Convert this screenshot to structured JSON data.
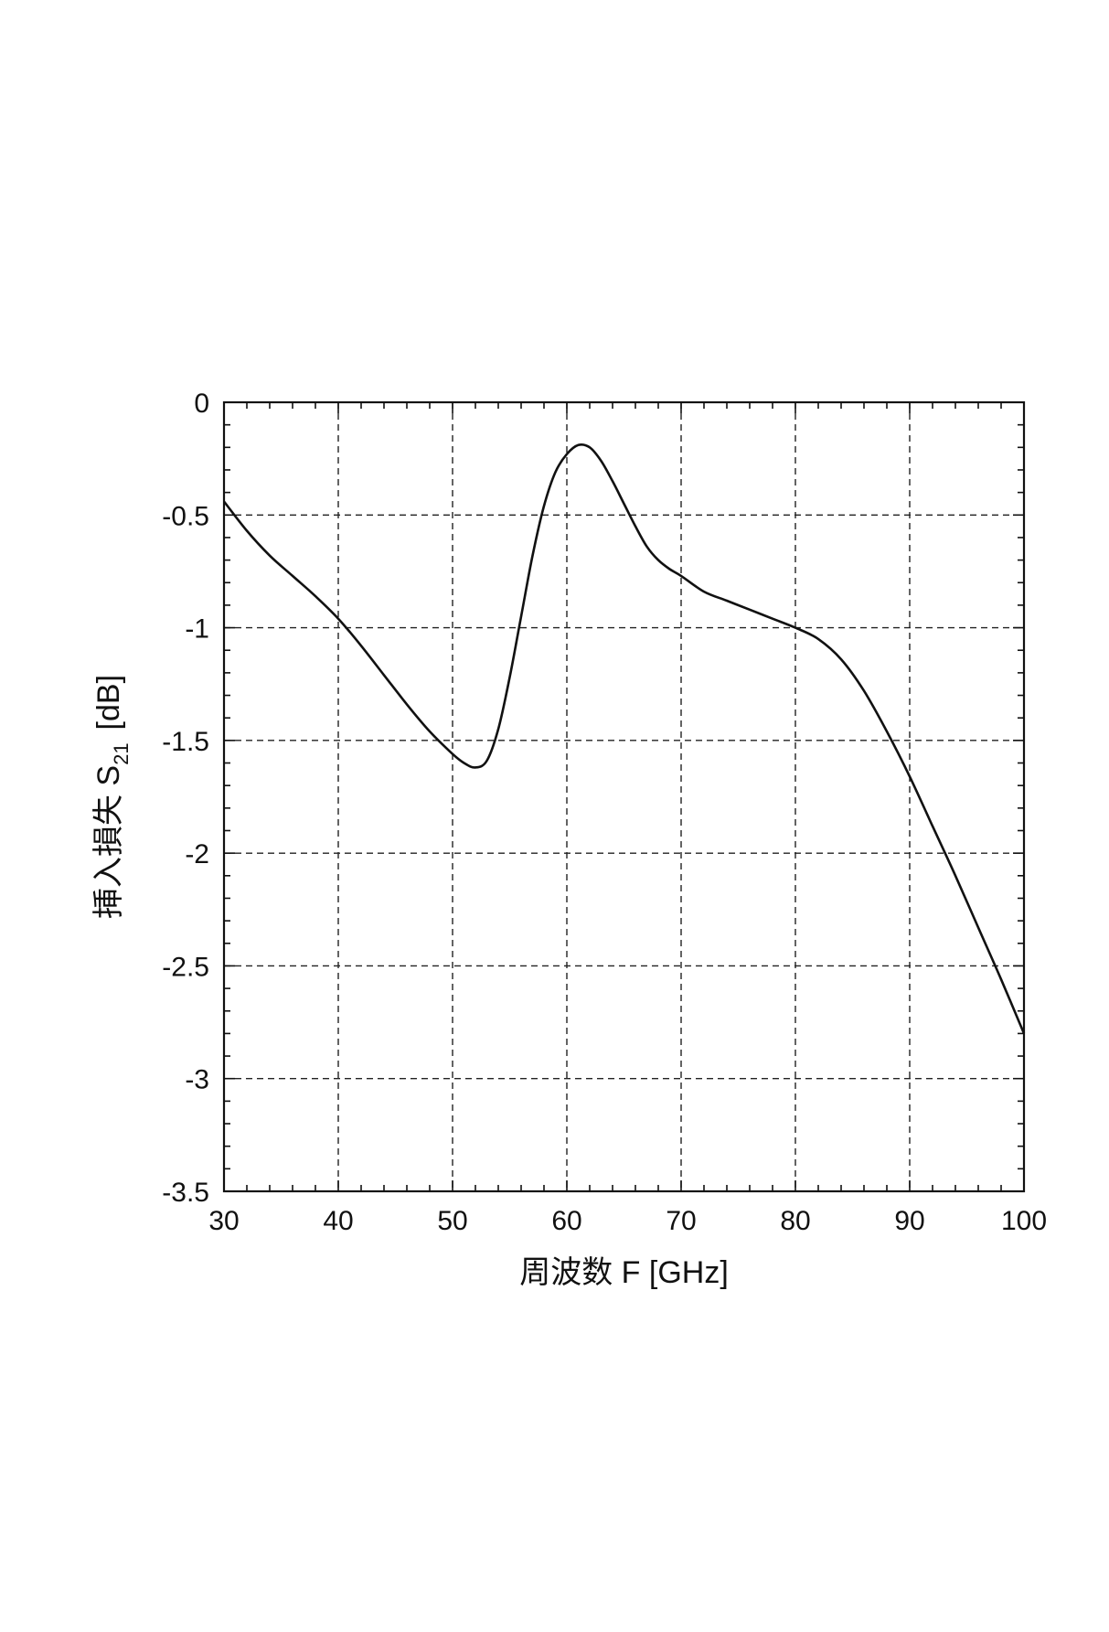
{
  "chart_data": {
    "type": "line",
    "title": "",
    "xlabel": "周波数 F [GHz]",
    "ylabel_main": "挿入損失 S",
    "ylabel_sub": "21",
    "ylabel_unit": "[dB]",
    "xlim": [
      30,
      100
    ],
    "ylim": [
      -3.5,
      0
    ],
    "xticks": [
      30,
      40,
      50,
      60,
      70,
      80,
      90,
      100
    ],
    "yticks": [
      0,
      -0.5,
      -1,
      -1.5,
      -2,
      -2.5,
      -3,
      -3.5
    ],
    "xtick_labels": [
      "30",
      "40",
      "50",
      "60",
      "70",
      "80",
      "90",
      "100"
    ],
    "ytick_labels": [
      "0",
      "-0.5",
      "-1",
      "-1.5",
      "-2",
      "-2.5",
      "-3",
      "-3.5"
    ],
    "grid": true,
    "series": [
      {
        "x": [
          30,
          32,
          34,
          36,
          38,
          40,
          42,
          44,
          46,
          48,
          50,
          51,
          52,
          53,
          54,
          55,
          56,
          57,
          58,
          59,
          60,
          61,
          62,
          63,
          64,
          65,
          66,
          67,
          68,
          69,
          70,
          72,
          74,
          76,
          78,
          80,
          82,
          84,
          86,
          88,
          90,
          92,
          94,
          96,
          98,
          100
        ],
        "y": [
          -0.44,
          -0.57,
          -0.68,
          -0.77,
          -0.86,
          -0.96,
          -1.08,
          -1.21,
          -1.34,
          -1.46,
          -1.56,
          -1.6,
          -1.62,
          -1.59,
          -1.45,
          -1.22,
          -0.95,
          -0.68,
          -0.46,
          -0.31,
          -0.23,
          -0.19,
          -0.2,
          -0.26,
          -0.35,
          -0.45,
          -0.55,
          -0.64,
          -0.7,
          -0.74,
          -0.77,
          -0.84,
          -0.88,
          -0.92,
          -0.96,
          -1.0,
          -1.05,
          -1.14,
          -1.28,
          -1.46,
          -1.66,
          -1.88,
          -2.1,
          -2.33,
          -2.56,
          -2.8
        ]
      }
    ]
  }
}
